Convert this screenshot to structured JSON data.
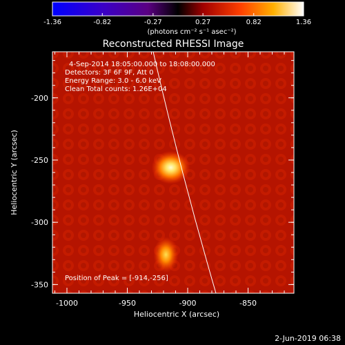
{
  "chart_data": {
    "type": "heatmap",
    "title": "Reconstructed RHESSI Image",
    "colorbar": {
      "ticks": [
        "-1.36",
        "-0.82",
        "-0.27",
        "0.27",
        "0.82",
        "1.36"
      ],
      "label": "(photons cm⁻² s⁻¹ asec⁻²)",
      "range": [
        -1.36,
        1.36
      ]
    },
    "xlabel": "Heliocentric X (arcsec)",
    "ylabel": "Heliocentric Y (arcsec)",
    "x_ticks": [
      "-1000",
      "-950",
      "-900",
      "-850"
    ],
    "y_ticks": [
      "-200",
      "-250",
      "-300",
      "-350"
    ],
    "xlim": [
      -1012,
      -812
    ],
    "ylim": [
      -357,
      -163
    ],
    "annotations": [
      "4-Sep-2014 18:05:00.000 to 18:08:00.000",
      "Detectors: 3F 6F 9F, Att 0",
      "Energy Range: 3.0 - 6.0 keV",
      "Clean     Total counts: 1.26E+04"
    ],
    "peak_label": "Position of Peak = [-914,-256]",
    "sources": [
      {
        "x": -914,
        "y": -256,
        "intensity": 1.36
      },
      {
        "x": -918,
        "y": -326,
        "intensity": 1.05
      }
    ],
    "background_level": 0.45,
    "colormap": "hot",
    "limb_color": "#ffffff"
  },
  "footer": {
    "date": "2-Jun-2019 06:38"
  }
}
